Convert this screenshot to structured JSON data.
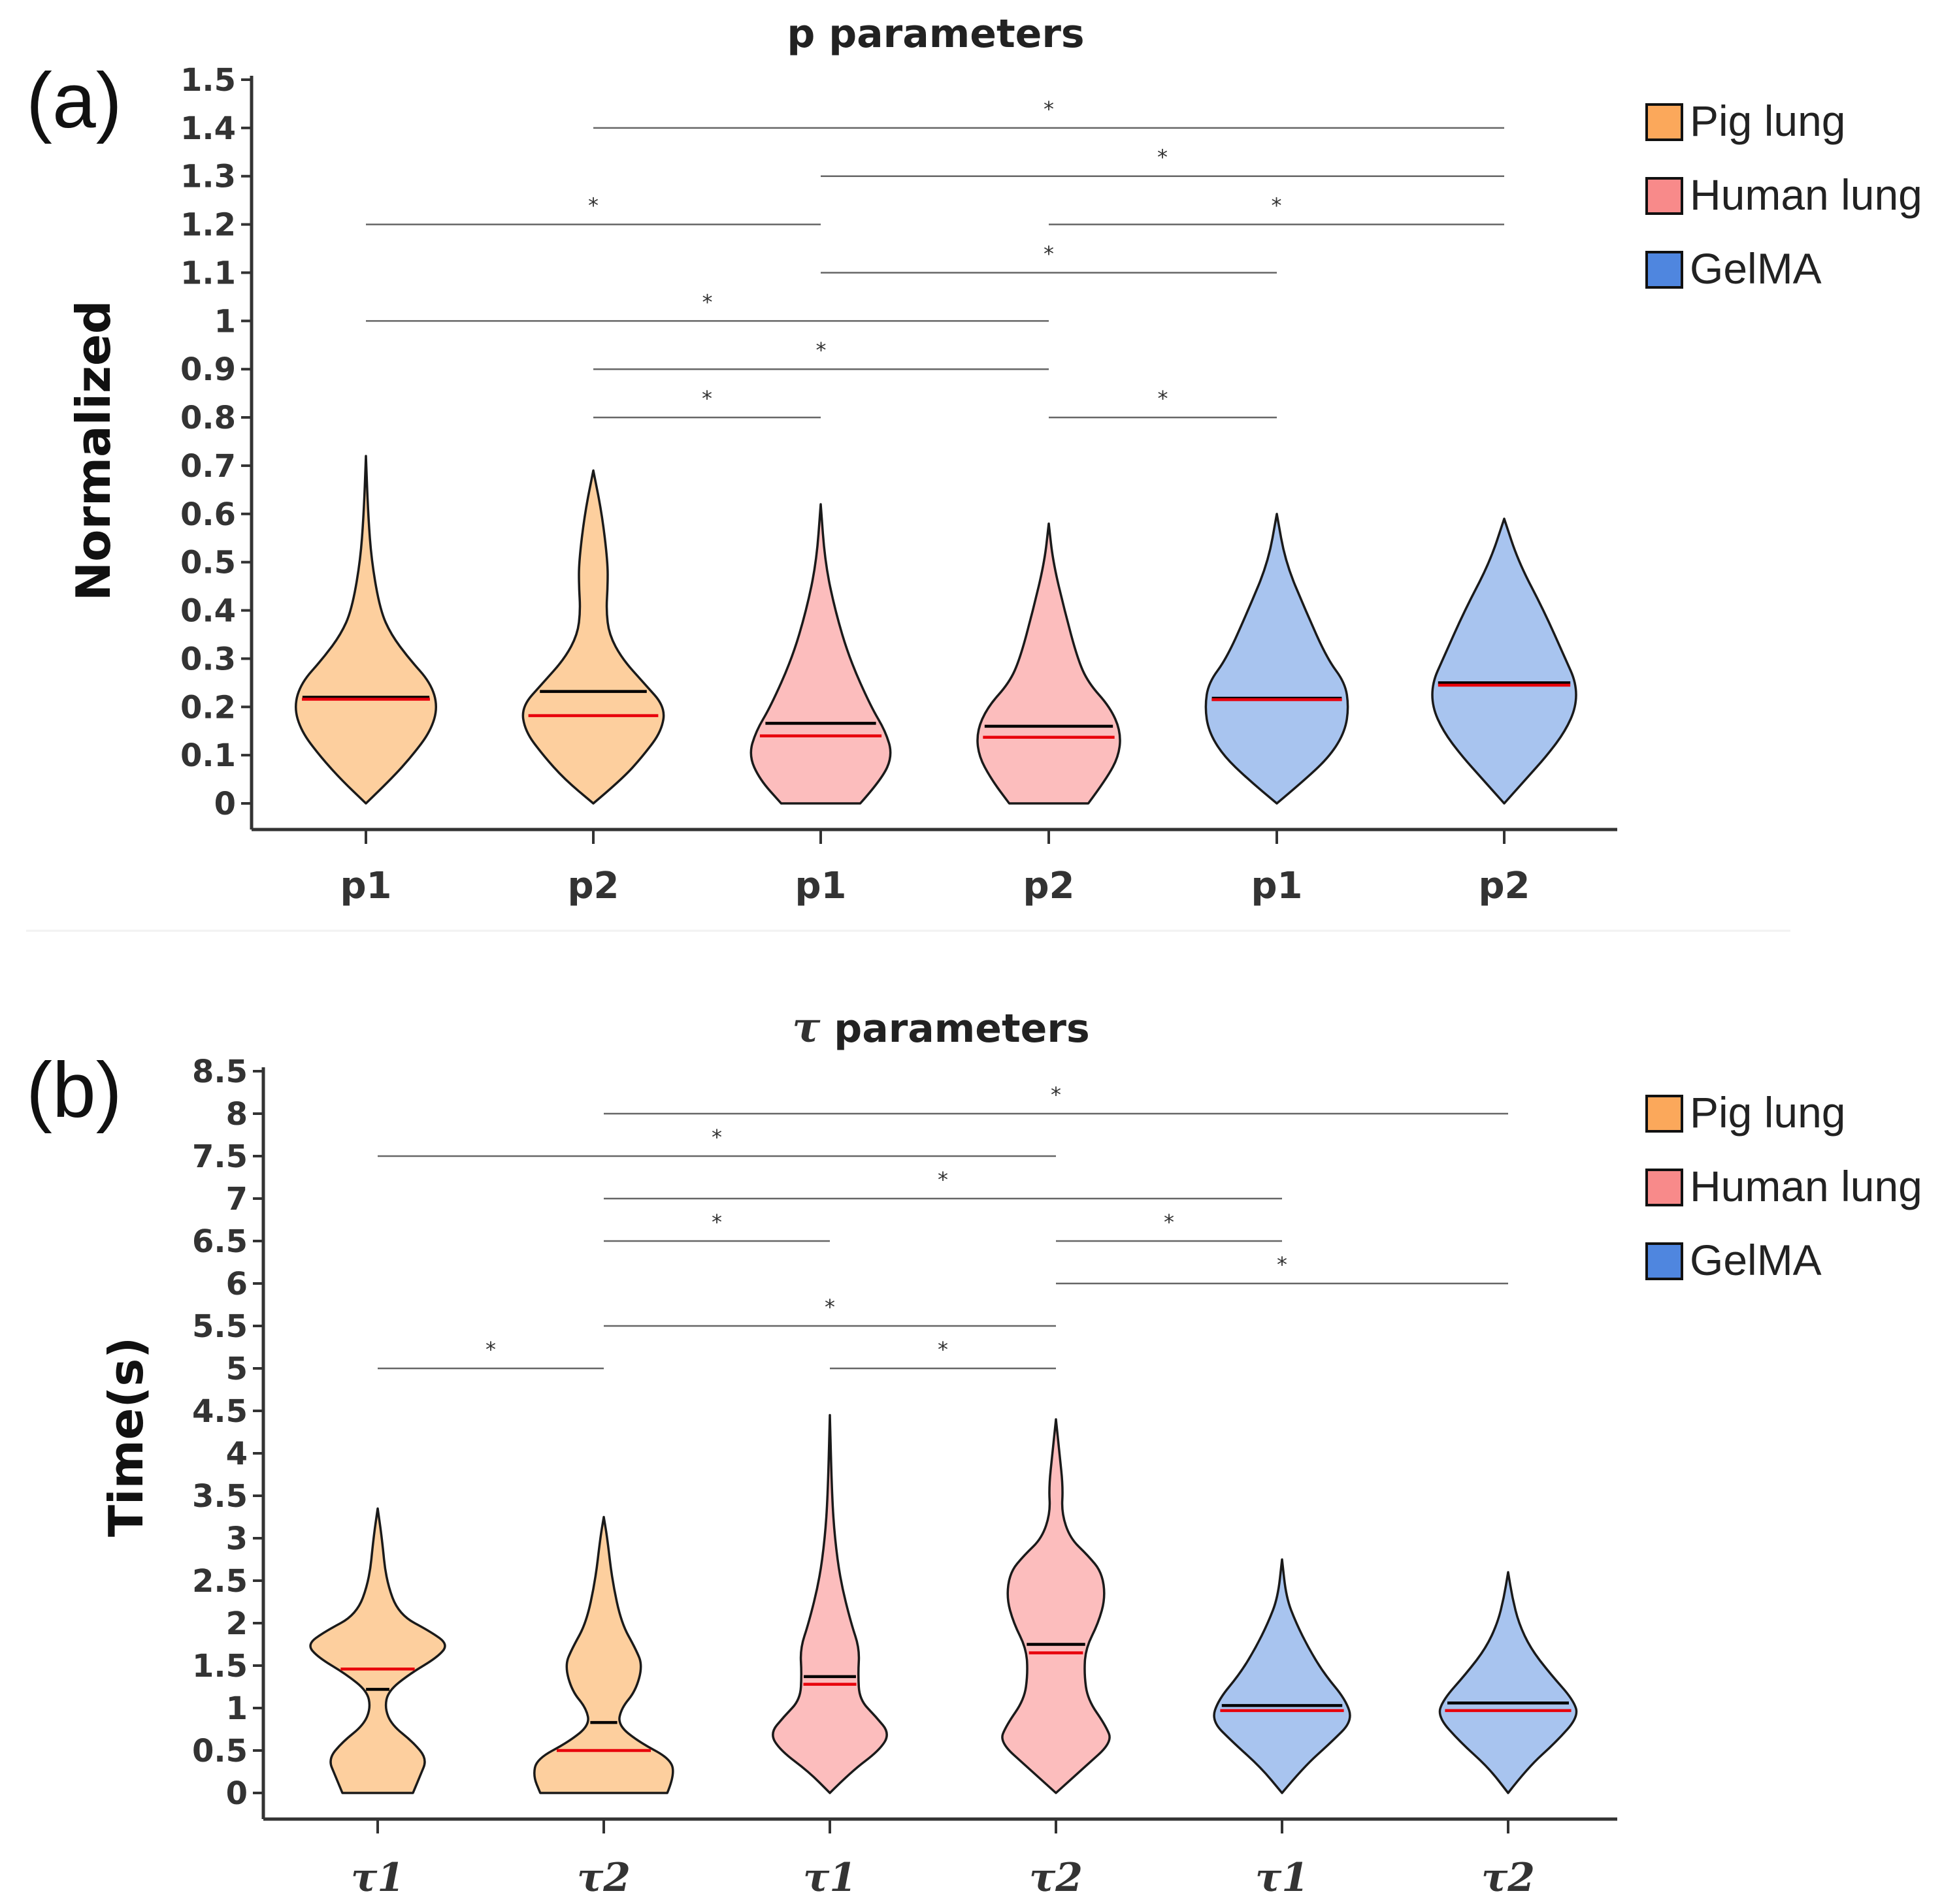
{
  "chart_data": [
    {
      "type": "violin",
      "panel_label": "(a)",
      "title": "p parameters",
      "ylabel": "Normalized",
      "ylim": [
        0,
        1.5
      ],
      "yticks": [
        0,
        0.1,
        0.2,
        0.3,
        0.4,
        0.5,
        0.6,
        0.7,
        0.8,
        0.9,
        1,
        1.1,
        1.2,
        1.3,
        1.4,
        1.5
      ],
      "ytick_labels": [
        "0",
        "0.1",
        "0.2",
        "0.3",
        "0.4",
        "0.5",
        "0.6",
        "0.7",
        "0.8",
        "0.9",
        "1",
        "1.1",
        "1.2",
        "1.3",
        "1.4",
        "1.5"
      ],
      "categories": [
        "p1",
        "p2",
        "p1",
        "p2",
        "p1",
        "p2"
      ],
      "groups": [
        "Pig lung",
        "Pig lung",
        "Human lung",
        "Human lung",
        "GelMA",
        "GelMA"
      ],
      "median": [
        0.216,
        0.182,
        0.14,
        0.137,
        0.215,
        0.245
      ],
      "mean": [
        0.22,
        0.232,
        0.166,
        0.16,
        0.218,
        0.25
      ],
      "min": [
        0,
        0,
        0,
        0,
        0,
        0
      ],
      "max": [
        0.72,
        0.69,
        0.62,
        0.58,
        0.6,
        0.59
      ],
      "density": [
        [
          [
            0,
            0
          ],
          [
            0.05,
            0.35
          ],
          [
            0.1,
            0.65
          ],
          [
            0.15,
            0.9
          ],
          [
            0.2,
            1
          ],
          [
            0.25,
            0.9
          ],
          [
            0.3,
            0.6
          ],
          [
            0.35,
            0.35
          ],
          [
            0.4,
            0.2
          ],
          [
            0.5,
            0.08
          ],
          [
            0.6,
            0.03
          ],
          [
            0.72,
            0
          ]
        ],
        [
          [
            0,
            0
          ],
          [
            0.05,
            0.4
          ],
          [
            0.1,
            0.7
          ],
          [
            0.15,
            0.95
          ],
          [
            0.2,
            1
          ],
          [
            0.25,
            0.7
          ],
          [
            0.3,
            0.4
          ],
          [
            0.35,
            0.22
          ],
          [
            0.4,
            0.18
          ],
          [
            0.45,
            0.2
          ],
          [
            0.5,
            0.2
          ],
          [
            0.6,
            0.12
          ],
          [
            0.69,
            0
          ]
        ],
        [
          [
            0,
            0.55
          ],
          [
            0.05,
            0.85
          ],
          [
            0.1,
            1
          ],
          [
            0.15,
            0.9
          ],
          [
            0.2,
            0.7
          ],
          [
            0.3,
            0.4
          ],
          [
            0.4,
            0.2
          ],
          [
            0.5,
            0.06
          ],
          [
            0.62,
            0
          ]
        ],
        [
          [
            0,
            0.55
          ],
          [
            0.05,
            0.8
          ],
          [
            0.1,
            0.98
          ],
          [
            0.15,
            1
          ],
          [
            0.2,
            0.85
          ],
          [
            0.25,
            0.55
          ],
          [
            0.3,
            0.4
          ],
          [
            0.4,
            0.22
          ],
          [
            0.5,
            0.06
          ],
          [
            0.58,
            0
          ]
        ],
        [
          [
            0,
            0
          ],
          [
            0.05,
            0.4
          ],
          [
            0.1,
            0.75
          ],
          [
            0.15,
            0.95
          ],
          [
            0.2,
            1
          ],
          [
            0.25,
            0.95
          ],
          [
            0.3,
            0.7
          ],
          [
            0.4,
            0.4
          ],
          [
            0.5,
            0.12
          ],
          [
            0.6,
            0
          ]
        ],
        [
          [
            0,
            0
          ],
          [
            0.05,
            0.3
          ],
          [
            0.1,
            0.6
          ],
          [
            0.15,
            0.85
          ],
          [
            0.2,
            1
          ],
          [
            0.25,
            1
          ],
          [
            0.3,
            0.85
          ],
          [
            0.4,
            0.55
          ],
          [
            0.5,
            0.2
          ],
          [
            0.59,
            0
          ]
        ]
      ],
      "significance": [
        {
          "from": 1,
          "to": 5,
          "y": 1.4,
          "label": "*"
        },
        {
          "from": 2,
          "to": 5,
          "y": 1.3,
          "label": "*"
        },
        {
          "from": 0,
          "to": 2,
          "y": 1.2,
          "label": "*"
        },
        {
          "from": 3,
          "to": 5,
          "y": 1.2,
          "label": "*"
        },
        {
          "from": 2,
          "to": 4,
          "y": 1.1,
          "label": "*"
        },
        {
          "from": 0,
          "to": 3,
          "y": 1.0,
          "label": "*"
        },
        {
          "from": 1,
          "to": 3,
          "y": 0.9,
          "label": "*"
        },
        {
          "from": 1,
          "to": 2,
          "y": 0.8,
          "label": "*"
        },
        {
          "from": 3,
          "to": 4,
          "y": 0.8,
          "label": "*"
        }
      ],
      "legend": [
        "Pig lung",
        "Human lung",
        "GelMA"
      ]
    },
    {
      "type": "violin",
      "panel_label": "(b)",
      "title_symbol": "τ",
      "title_rest": " parameters",
      "ylabel": "Time(s)",
      "ylim": [
        0,
        8.5
      ],
      "yticks": [
        0,
        0.5,
        1,
        1.5,
        2,
        2.5,
        3,
        3.5,
        4,
        4.5,
        5,
        5.5,
        6,
        6.5,
        7,
        7.5,
        8,
        8.5
      ],
      "ytick_labels": [
        "0",
        "0.5",
        "1",
        "1.5",
        "2",
        "2.5",
        "3",
        "3.5",
        "4",
        "4.5",
        "5",
        "5.5",
        "6",
        "6.5",
        "7",
        "7.5",
        "8",
        "8.5"
      ],
      "categories": [
        "τ1",
        "τ2",
        "τ1",
        "τ2",
        "τ1",
        "τ2"
      ],
      "groups": [
        "Pig lung",
        "Pig lung",
        "Human lung",
        "Human lung",
        "GelMA",
        "GelMA"
      ],
      "median": [
        1.46,
        0.5,
        1.28,
        1.65,
        0.97,
        0.97
      ],
      "mean": [
        1.22,
        0.83,
        1.37,
        1.75,
        1.03,
        1.06
      ],
      "min": [
        0,
        0,
        0,
        0,
        0,
        0
      ],
      "max": [
        3.35,
        3.25,
        4.45,
        4.4,
        2.75,
        2.6
      ],
      "density": [
        [
          [
            0,
            0.5
          ],
          [
            0.2,
            0.6
          ],
          [
            0.4,
            0.7
          ],
          [
            0.6,
            0.5
          ],
          [
            0.8,
            0.2
          ],
          [
            1.0,
            0.1
          ],
          [
            1.2,
            0.15
          ],
          [
            1.4,
            0.45
          ],
          [
            1.6,
            0.85
          ],
          [
            1.75,
            1
          ],
          [
            1.9,
            0.75
          ],
          [
            2.1,
            0.3
          ],
          [
            2.5,
            0.12
          ],
          [
            3.0,
            0.06
          ],
          [
            3.35,
            0
          ]
        ],
        [
          [
            0,
            0.9
          ],
          [
            0.2,
            1
          ],
          [
            0.4,
            0.95
          ],
          [
            0.6,
            0.5
          ],
          [
            0.8,
            0.2
          ],
          [
            1.0,
            0.25
          ],
          [
            1.2,
            0.45
          ],
          [
            1.5,
            0.55
          ],
          [
            1.7,
            0.45
          ],
          [
            2.0,
            0.25
          ],
          [
            2.5,
            0.12
          ],
          [
            3.0,
            0.05
          ],
          [
            3.25,
            0
          ]
        ],
        [
          [
            0,
            0
          ],
          [
            0.25,
            0.3
          ],
          [
            0.5,
            0.7
          ],
          [
            0.7,
            0.85
          ],
          [
            0.9,
            0.65
          ],
          [
            1.1,
            0.42
          ],
          [
            1.4,
            0.4
          ],
          [
            1.7,
            0.42
          ],
          [
            2.0,
            0.3
          ],
          [
            2.5,
            0.15
          ],
          [
            3.0,
            0.07
          ],
          [
            3.5,
            0.03
          ],
          [
            4.45,
            0
          ]
        ],
        [
          [
            0,
            0
          ],
          [
            0.3,
            0.4
          ],
          [
            0.6,
            0.8
          ],
          [
            0.8,
            0.7
          ],
          [
            1.1,
            0.45
          ],
          [
            1.4,
            0.4
          ],
          [
            1.7,
            0.42
          ],
          [
            2.0,
            0.6
          ],
          [
            2.3,
            0.7
          ],
          [
            2.6,
            0.65
          ],
          [
            2.8,
            0.45
          ],
          [
            3.0,
            0.2
          ],
          [
            3.3,
            0.08
          ],
          [
            3.6,
            0.1
          ],
          [
            4.0,
            0.05
          ],
          [
            4.4,
            0
          ]
        ],
        [
          [
            0,
            0
          ],
          [
            0.3,
            0.3
          ],
          [
            0.6,
            0.7
          ],
          [
            0.85,
            1
          ],
          [
            1.1,
            0.9
          ],
          [
            1.4,
            0.6
          ],
          [
            1.7,
            0.38
          ],
          [
            2.0,
            0.2
          ],
          [
            2.3,
            0.06
          ],
          [
            2.75,
            0
          ]
        ],
        [
          [
            0,
            0
          ],
          [
            0.3,
            0.28
          ],
          [
            0.6,
            0.68
          ],
          [
            0.9,
            1
          ],
          [
            1.1,
            0.92
          ],
          [
            1.4,
            0.6
          ],
          [
            1.7,
            0.32
          ],
          [
            2.0,
            0.15
          ],
          [
            2.3,
            0.06
          ],
          [
            2.6,
            0
          ]
        ]
      ],
      "significance": [
        {
          "from": 1,
          "to": 5,
          "y": 8.0,
          "label": "*"
        },
        {
          "from": 0,
          "to": 3,
          "y": 7.5,
          "label": "*"
        },
        {
          "from": 1,
          "to": 4,
          "y": 7.0,
          "label": "*"
        },
        {
          "from": 1,
          "to": 2,
          "y": 6.5,
          "label": "*"
        },
        {
          "from": 3,
          "to": 4,
          "y": 6.5,
          "label": "*"
        },
        {
          "from": 3,
          "to": 5,
          "y": 6.0,
          "label": "*"
        },
        {
          "from": 1,
          "to": 3,
          "y": 5.5,
          "label": "*"
        },
        {
          "from": 0,
          "to": 1,
          "y": 5.0,
          "label": "*"
        },
        {
          "from": 2,
          "to": 3,
          "y": 5.0,
          "label": "*"
        }
      ],
      "legend": [
        "Pig lung",
        "Human lung",
        "GelMA"
      ]
    }
  ],
  "colors": {
    "Pig lung": {
      "fill": "#fdcf9e",
      "swatch": "#fba85b"
    },
    "Human lung": {
      "fill": "#fcbdbd",
      "swatch": "#f88a8a"
    },
    "GelMA": {
      "fill": "#a8c4ef",
      "swatch": "#4f86df"
    },
    "median_line": "#e8000b",
    "mean_line": "#000000"
  }
}
